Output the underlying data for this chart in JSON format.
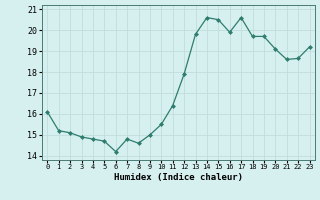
{
  "x": [
    0,
    1,
    2,
    3,
    4,
    5,
    6,
    7,
    8,
    9,
    10,
    11,
    12,
    13,
    14,
    15,
    16,
    17,
    18,
    19,
    20,
    21,
    22,
    23
  ],
  "y": [
    16.1,
    15.2,
    15.1,
    14.9,
    14.8,
    14.7,
    14.2,
    14.8,
    14.6,
    15.0,
    15.5,
    16.4,
    17.9,
    19.8,
    20.6,
    20.5,
    19.9,
    20.6,
    19.7,
    19.7,
    19.1,
    18.6,
    18.65,
    19.2
  ],
  "line_color": "#2e7d6e",
  "marker": "D",
  "marker_size": 2,
  "bg_color": "#d6f0ef",
  "grid_color": "#c0dedd",
  "xlabel": "Humidex (Indice chaleur)",
  "xlim": [
    -0.5,
    23.5
  ],
  "ylim": [
    13.8,
    21.2
  ],
  "yticks": [
    14,
    15,
    16,
    17,
    18,
    19,
    20,
    21
  ],
  "xticks": [
    0,
    1,
    2,
    3,
    4,
    5,
    6,
    7,
    8,
    9,
    10,
    11,
    12,
    13,
    14,
    15,
    16,
    17,
    18,
    19,
    20,
    21,
    22,
    23
  ]
}
